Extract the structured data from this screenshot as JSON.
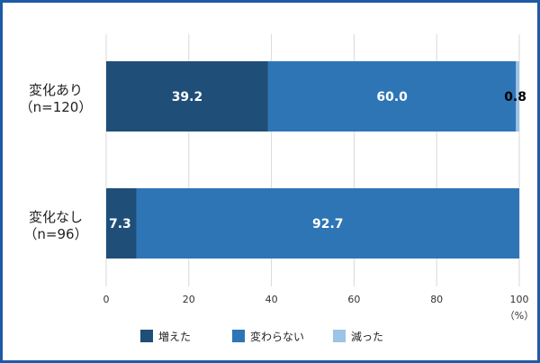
{
  "chart_data": {
    "type": "bar",
    "orientation": "horizontal",
    "stacked": true,
    "categories": [
      [
        "変化あり",
        "（n=120）"
      ],
      [
        "変化なし",
        "（n=96）"
      ]
    ],
    "series": [
      {
        "name": "増えた",
        "values": [
          39.2,
          7.3
        ],
        "labels": [
          "39.2",
          "7.3"
        ],
        "color": "#1f4e79",
        "label_color": "#ffffff"
      },
      {
        "name": "変わらない",
        "values": [
          60.0,
          92.7
        ],
        "labels": [
          "60.0",
          "92.7"
        ],
        "color": "#2e75b6",
        "label_color": "#ffffff"
      },
      {
        "name": "減った",
        "values": [
          0.8,
          0.0
        ],
        "labels": [
          "0.8",
          ""
        ],
        "color": "#9dc3e6",
        "label_color": "#000000"
      }
    ],
    "xlim": [
      0,
      100
    ],
    "xticks": [
      0,
      20,
      40,
      60,
      80,
      100
    ],
    "unit_label": "（%）",
    "grid": true,
    "legend_position": "bottom"
  }
}
